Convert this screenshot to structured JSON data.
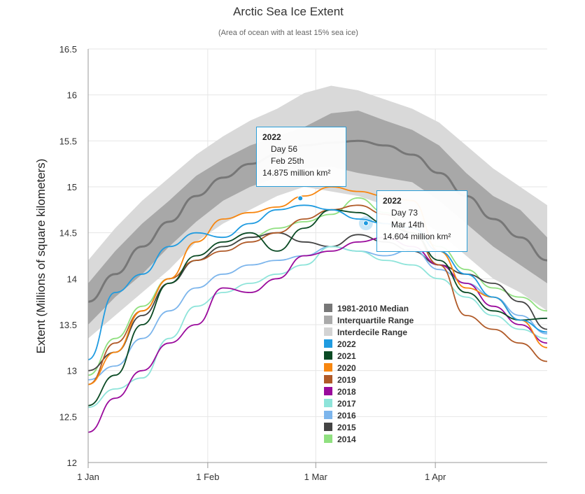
{
  "chart_data": {
    "type": "line",
    "title": "Arctic Sea Ice Extent",
    "subtitle": "(Area of ocean with at least 15% sea ice)",
    "ylabel": "Extent (Millions of square kilometers)",
    "xlabel": "",
    "ylim": [
      12,
      16.5
    ],
    "xlim": [
      1,
      120
    ],
    "y_ticks": [
      "12",
      "12.5",
      "13",
      "13.5",
      "14",
      "14.5",
      "15",
      "15.5",
      "16",
      "16.5"
    ],
    "y_tick_values": [
      12,
      12.5,
      13,
      13.5,
      14,
      14.5,
      15,
      15.5,
      16,
      16.5
    ],
    "x_ticks": [
      {
        "label": "1 Jan",
        "day": 1
      },
      {
        "label": "1 Feb",
        "day": 32
      },
      {
        "label": "1 Mar",
        "day": 60
      },
      {
        "label": "1 Apr",
        "day": 91
      }
    ],
    "x": [
      1,
      8,
      15,
      22,
      29,
      36,
      43,
      50,
      57,
      64,
      71,
      78,
      85,
      92,
      99,
      106,
      113,
      120
    ],
    "bands": {
      "decile_low": [
        13.35,
        13.6,
        13.85,
        14.1,
        14.4,
        14.6,
        14.75,
        14.9,
        15.0,
        14.95,
        14.9,
        14.8,
        14.7,
        14.5,
        14.25,
        14.0,
        13.85,
        13.65
      ],
      "decile_high": [
        14.2,
        14.55,
        14.85,
        15.1,
        15.35,
        15.55,
        15.72,
        15.85,
        16.02,
        16.1,
        16.05,
        15.95,
        15.85,
        15.7,
        15.45,
        15.2,
        15.0,
        14.8
      ],
      "quart_low": [
        13.5,
        13.8,
        14.05,
        14.35,
        14.62,
        14.85,
        15.0,
        15.1,
        15.2,
        15.22,
        15.15,
        15.1,
        15.05,
        14.85,
        14.6,
        14.35,
        14.15,
        13.95
      ],
      "quart_high": [
        13.95,
        14.3,
        14.6,
        14.85,
        15.12,
        15.3,
        15.45,
        15.55,
        15.65,
        15.8,
        15.83,
        15.72,
        15.62,
        15.45,
        15.15,
        14.9,
        14.75,
        14.45
      ],
      "median": [
        13.75,
        14.05,
        14.35,
        14.62,
        14.9,
        15.1,
        15.25,
        15.35,
        15.45,
        15.48,
        15.5,
        15.45,
        15.35,
        15.15,
        14.9,
        14.65,
        14.45,
        14.2
      ]
    },
    "series": [
      {
        "name": "2014",
        "color": "#90e080",
        "values": [
          12.95,
          13.35,
          13.7,
          14.0,
          14.2,
          14.35,
          14.45,
          14.55,
          14.62,
          14.7,
          14.88,
          14.72,
          14.55,
          14.35,
          14.1,
          13.9,
          13.8,
          13.65
        ]
      },
      {
        "name": "2015",
        "color": "#444444",
        "values": [
          13.0,
          13.2,
          13.6,
          13.95,
          14.2,
          14.35,
          14.45,
          14.5,
          14.4,
          14.35,
          14.48,
          14.4,
          14.3,
          14.15,
          14.05,
          13.95,
          13.75,
          13.45
        ]
      },
      {
        "name": "2016",
        "color": "#7cb5ec",
        "values": [
          12.9,
          13.05,
          13.35,
          13.65,
          13.9,
          14.05,
          14.15,
          14.2,
          14.25,
          14.35,
          14.3,
          14.25,
          14.32,
          14.1,
          13.95,
          13.8,
          13.6,
          13.4
        ]
      },
      {
        "name": "2017",
        "color": "#8ee4da",
        "values": [
          12.6,
          12.8,
          12.92,
          13.35,
          13.7,
          13.85,
          13.95,
          14.05,
          14.15,
          14.35,
          14.3,
          14.2,
          14.15,
          14.0,
          13.8,
          13.6,
          13.45,
          13.35
        ]
      },
      {
        "name": "2018",
        "color": "#9a0a9c",
        "values": [
          12.33,
          12.7,
          13.0,
          13.3,
          13.5,
          13.9,
          13.85,
          14.0,
          14.25,
          14.3,
          14.4,
          14.45,
          14.35,
          14.15,
          13.95,
          13.7,
          13.5,
          13.3
        ]
      },
      {
        "name": "2019",
        "color": "#b05a28",
        "values": [
          12.85,
          13.3,
          13.65,
          14.0,
          14.2,
          14.3,
          14.4,
          14.5,
          14.65,
          14.75,
          14.8,
          14.7,
          14.5,
          14.15,
          13.6,
          13.45,
          13.3,
          13.1
        ]
      },
      {
        "name": "2020",
        "color": "#f7860f",
        "values": [
          12.85,
          13.2,
          13.65,
          14.0,
          14.4,
          14.65,
          14.72,
          14.78,
          14.9,
          15.0,
          14.95,
          14.9,
          14.85,
          14.3,
          13.9,
          13.8,
          13.55,
          13.25
        ]
      },
      {
        "name": "2021",
        "color": "#0a4a24",
        "values": [
          12.62,
          12.95,
          13.5,
          13.95,
          14.25,
          14.4,
          14.5,
          14.3,
          14.55,
          14.75,
          14.72,
          14.6,
          14.5,
          14.2,
          13.85,
          13.65,
          13.55,
          13.57
        ]
      },
      {
        "name": "2022",
        "color": "#1f9be0",
        "values": [
          13.12,
          13.85,
          14.05,
          14.35,
          14.5,
          14.45,
          14.6,
          14.75,
          14.8,
          14.75,
          14.65,
          14.6,
          14.55,
          14.3,
          14.05,
          13.8,
          13.55,
          13.42
        ]
      }
    ],
    "legend": {
      "position": "center",
      "items": [
        {
          "label": "1981-2010 Median",
          "color": "#777777"
        },
        {
          "label": "Interquartile Range",
          "color": "#aaaaaa"
        },
        {
          "label": "Interdecile Range",
          "color": "#d3d3d3"
        },
        {
          "label": "2022",
          "color": "#1f9be0"
        },
        {
          "label": "2021",
          "color": "#0a4a24"
        },
        {
          "label": "2020",
          "color": "#f7860f"
        },
        {
          "label": "2019",
          "color": "#b05a28"
        },
        {
          "label": "2018",
          "color": "#9a0a9c"
        },
        {
          "label": "2017",
          "color": "#8ee4da"
        },
        {
          "label": "2016",
          "color": "#7cb5ec"
        },
        {
          "label": "2015",
          "color": "#444444"
        },
        {
          "label": "2014",
          "color": "#90e080"
        }
      ]
    },
    "tooltips": [
      {
        "year": "2022",
        "day": "Day 56",
        "date": "Feb 25th",
        "value": "14.875 million km²",
        "day_num": 56,
        "extent": 14.875
      },
      {
        "year": "2022",
        "day": "Day 73",
        "date": "Mar 14th",
        "value": "14.604 million km²",
        "day_num": 73,
        "extent": 14.604
      }
    ]
  }
}
